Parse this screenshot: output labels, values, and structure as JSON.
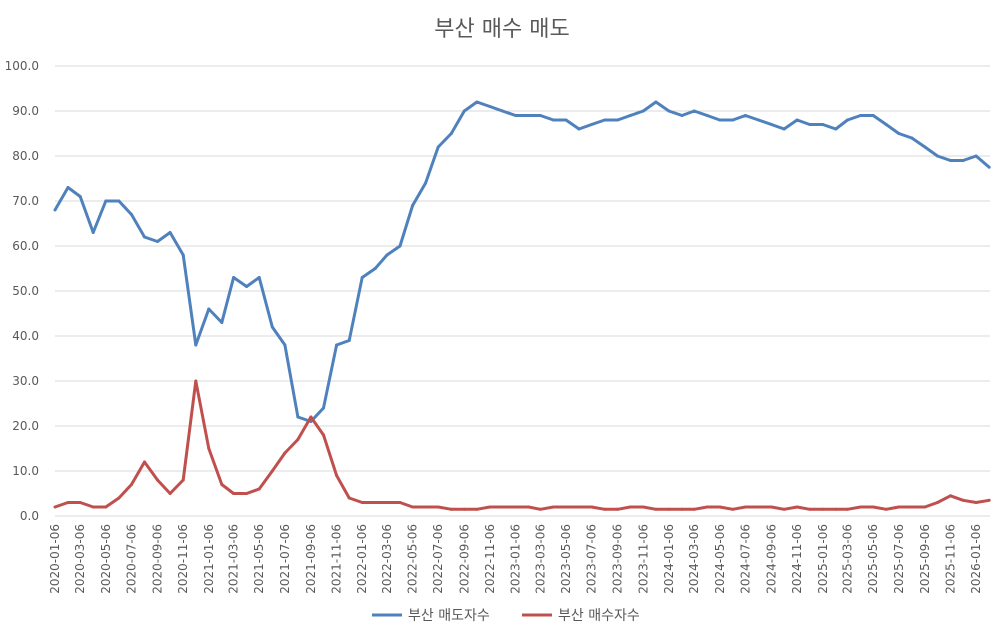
{
  "chart_data": {
    "type": "line",
    "title": "부산 매수 매도",
    "xlabel": "",
    "ylabel": "",
    "ylim": [
      0,
      100
    ],
    "yticks": [
      "0.0",
      "10.0",
      "20.0",
      "30.0",
      "40.0",
      "50.0",
      "60.0",
      "70.0",
      "80.0",
      "90.0",
      "100.0"
    ],
    "grid": true,
    "legend_position": "bottom",
    "x_tick_labels": [
      "2020-01-06",
      "2020-03-06",
      "2020-05-06",
      "2020-07-06",
      "2020-09-06",
      "2020-11-06",
      "2021-01-06",
      "2021-03-06",
      "2021-05-06",
      "2021-07-06",
      "2021-09-06",
      "2021-11-06",
      "2022-01-06",
      "2022-03-06",
      "2022-05-06",
      "2022-07-06",
      "2022-09-06",
      "2022-11-06",
      "2023-01-06",
      "2023-03-06",
      "2023-05-06",
      "2023-07-06",
      "2023-09-06",
      "2023-11-06",
      "2024-01-06",
      "2024-03-06",
      "2024-05-06",
      "2024-07-06",
      "2024-09-06",
      "2024-11-06",
      "2025-01-06",
      "2025-03-06",
      "2025-05-06",
      "2025-07-06",
      "2025-09-06",
      "2025-11-06",
      "2026-01-06"
    ],
    "series": [
      {
        "name": "부산 매도자수",
        "color": "#4f81bd",
        "x": [
          "2020-01-06",
          "2020-02-06",
          "2020-03-06",
          "2020-04-06",
          "2020-05-06",
          "2020-06-06",
          "2020-07-06",
          "2020-08-06",
          "2020-09-06",
          "2020-10-06",
          "2020-11-06",
          "2020-12-06",
          "2021-01-06",
          "2021-02-06",
          "2021-03-06",
          "2021-04-06",
          "2021-05-06",
          "2021-06-06",
          "2021-07-06",
          "2021-08-06",
          "2021-09-06",
          "2021-10-06",
          "2021-11-06",
          "2021-12-06",
          "2022-01-06",
          "2022-02-06",
          "2022-03-06",
          "2022-04-06",
          "2022-05-06",
          "2022-06-06",
          "2022-07-06",
          "2022-08-06",
          "2022-09-06",
          "2022-10-06",
          "2022-11-06",
          "2022-12-06",
          "2023-01-06",
          "2023-02-06",
          "2023-03-06",
          "2023-04-06",
          "2023-05-06",
          "2023-06-06",
          "2023-07-06",
          "2023-08-06",
          "2023-09-06",
          "2023-10-06",
          "2023-11-06",
          "2023-12-06",
          "2024-01-06",
          "2024-02-06",
          "2024-03-06",
          "2024-04-06",
          "2024-05-06",
          "2024-06-06",
          "2024-07-06",
          "2024-08-06",
          "2024-09-06",
          "2024-10-06",
          "2024-11-06",
          "2024-12-06",
          "2025-01-06",
          "2025-02-06",
          "2025-03-06",
          "2025-04-06",
          "2025-05-06",
          "2025-06-06",
          "2025-07-06",
          "2025-08-06",
          "2025-09-06",
          "2025-10-06",
          "2025-11-06",
          "2025-12-06",
          "2026-01-06",
          "2026-02-06"
        ],
        "values": [
          68,
          73,
          71,
          63,
          70,
          70,
          67,
          62,
          61,
          63,
          58,
          38,
          46,
          43,
          53,
          51,
          53,
          42,
          38,
          22,
          21,
          24,
          38,
          39,
          53,
          55,
          58,
          60,
          69,
          74,
          82,
          85,
          90,
          92,
          91,
          90,
          89,
          89,
          89,
          88,
          88,
          86,
          87,
          88,
          88,
          89,
          90,
          92,
          90,
          89,
          90,
          89,
          88,
          88,
          89,
          88,
          87,
          86,
          88,
          87,
          87,
          86,
          88,
          89,
          89,
          87,
          85,
          84,
          82,
          80,
          79,
          79,
          80,
          77.5
        ]
      },
      {
        "name": "부산 매수자수",
        "color": "#c0504d",
        "x": [
          "2020-01-06",
          "2020-02-06",
          "2020-03-06",
          "2020-04-06",
          "2020-05-06",
          "2020-06-06",
          "2020-07-06",
          "2020-08-06",
          "2020-09-06",
          "2020-10-06",
          "2020-11-06",
          "2020-12-06",
          "2021-01-06",
          "2021-02-06",
          "2021-03-06",
          "2021-04-06",
          "2021-05-06",
          "2021-06-06",
          "2021-07-06",
          "2021-08-06",
          "2021-09-06",
          "2021-10-06",
          "2021-11-06",
          "2021-12-06",
          "2022-01-06",
          "2022-02-06",
          "2022-03-06",
          "2022-04-06",
          "2022-05-06",
          "2022-06-06",
          "2022-07-06",
          "2022-08-06",
          "2022-09-06",
          "2022-10-06",
          "2022-11-06",
          "2022-12-06",
          "2023-01-06",
          "2023-02-06",
          "2023-03-06",
          "2023-04-06",
          "2023-05-06",
          "2023-06-06",
          "2023-07-06",
          "2023-08-06",
          "2023-09-06",
          "2023-10-06",
          "2023-11-06",
          "2023-12-06",
          "2024-01-06",
          "2024-02-06",
          "2024-03-06",
          "2024-04-06",
          "2024-05-06",
          "2024-06-06",
          "2024-07-06",
          "2024-08-06",
          "2024-09-06",
          "2024-10-06",
          "2024-11-06",
          "2024-12-06",
          "2025-01-06",
          "2025-02-06",
          "2025-03-06",
          "2025-04-06",
          "2025-05-06",
          "2025-06-06",
          "2025-07-06",
          "2025-08-06",
          "2025-09-06",
          "2025-10-06",
          "2025-11-06",
          "2025-12-06",
          "2026-01-06",
          "2026-02-06"
        ],
        "values": [
          2,
          3,
          3,
          2,
          2,
          4,
          7,
          12,
          8,
          5,
          8,
          30,
          15,
          7,
          5,
          5,
          6,
          10,
          14,
          17,
          22,
          18,
          9,
          4,
          3,
          3,
          3,
          3,
          2,
          2,
          2,
          1.5,
          1.5,
          1.5,
          2,
          2,
          2,
          2,
          1.5,
          2,
          2,
          2,
          2,
          1.5,
          1.5,
          2,
          2,
          1.5,
          1.5,
          1.5,
          1.5,
          2,
          2,
          1.5,
          2,
          2,
          2,
          1.5,
          2,
          1.5,
          1.5,
          1.5,
          1.5,
          2,
          2,
          1.5,
          2,
          2,
          2,
          3,
          4.5,
          3.5,
          3,
          3.5
        ]
      }
    ]
  }
}
